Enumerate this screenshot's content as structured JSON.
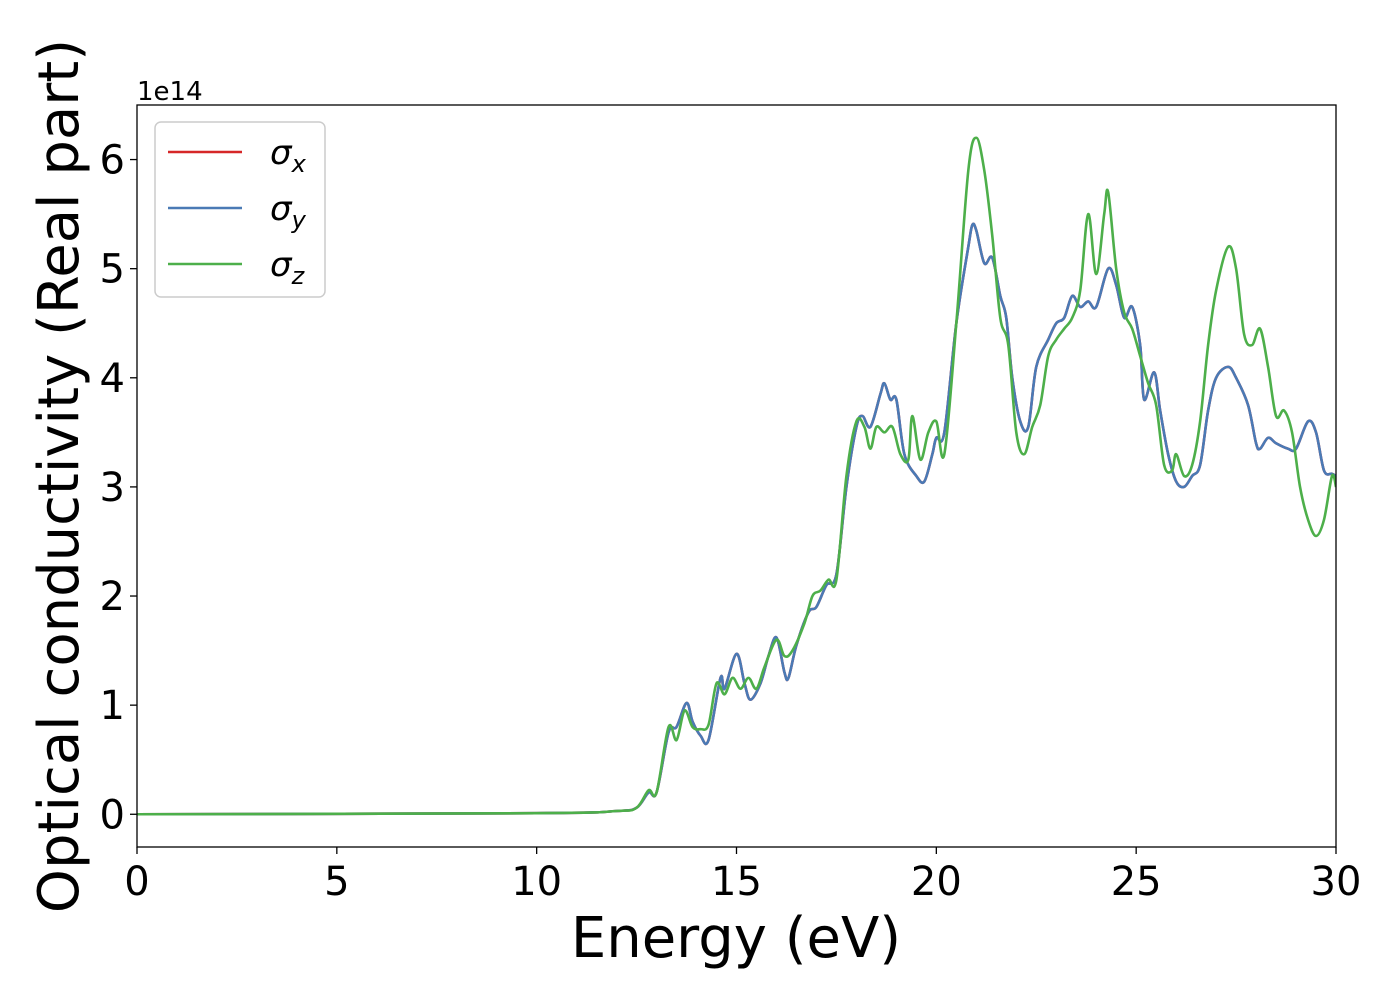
{
  "chart_data": {
    "type": "line",
    "xlabel": "Energy (eV)",
    "ylabel": "Optical conductivity (Real part)",
    "y_offset_label": "1e14",
    "y_scale_factor": 100000000000000.0,
    "xlim": [
      0,
      30
    ],
    "ylim": [
      -0.3,
      6.5
    ],
    "x_ticks": [
      0,
      5,
      10,
      15,
      20,
      25,
      30
    ],
    "x_tick_labels": [
      "0",
      "5",
      "10",
      "15",
      "20",
      "25",
      "30"
    ],
    "y_ticks": [
      0,
      1,
      2,
      3,
      4,
      5,
      6
    ],
    "y_tick_labels": [
      "0",
      "1",
      "2",
      "3",
      "4",
      "5",
      "6"
    ],
    "grid": false,
    "legend_position": "top-left",
    "series": [
      {
        "name": "σx",
        "legend_base": "σ",
        "legend_sub": "x",
        "color": "#d62728",
        "points": [
          [
            0,
            0
          ],
          [
            10,
            0.01
          ],
          [
            12,
            0.03
          ],
          [
            12.5,
            0.06
          ],
          [
            12.8,
            0.2
          ],
          [
            13.0,
            0.2
          ],
          [
            13.3,
            0.75
          ],
          [
            13.5,
            0.8
          ],
          [
            13.75,
            1.02
          ],
          [
            13.9,
            0.85
          ],
          [
            14.1,
            0.72
          ],
          [
            14.3,
            0.68
          ],
          [
            14.6,
            1.25
          ],
          [
            14.7,
            1.15
          ],
          [
            15.0,
            1.47
          ],
          [
            15.2,
            1.2
          ],
          [
            15.35,
            1.05
          ],
          [
            15.6,
            1.2
          ],
          [
            15.8,
            1.45
          ],
          [
            16.0,
            1.62
          ],
          [
            16.2,
            1.3
          ],
          [
            16.3,
            1.25
          ],
          [
            16.5,
            1.55
          ],
          [
            16.8,
            1.85
          ],
          [
            17.0,
            1.9
          ],
          [
            17.25,
            2.1
          ],
          [
            17.5,
            2.2
          ],
          [
            17.75,
            3.0
          ],
          [
            18.0,
            3.55
          ],
          [
            18.15,
            3.65
          ],
          [
            18.35,
            3.55
          ],
          [
            18.6,
            3.85
          ],
          [
            18.7,
            3.95
          ],
          [
            18.85,
            3.8
          ],
          [
            19.0,
            3.8
          ],
          [
            19.2,
            3.3
          ],
          [
            19.5,
            3.1
          ],
          [
            19.7,
            3.05
          ],
          [
            19.9,
            3.3
          ],
          [
            20.0,
            3.45
          ],
          [
            20.2,
            3.5
          ],
          [
            20.5,
            4.5
          ],
          [
            20.8,
            5.2
          ],
          [
            20.9,
            5.4
          ],
          [
            21.0,
            5.35
          ],
          [
            21.2,
            5.05
          ],
          [
            21.4,
            5.1
          ],
          [
            21.6,
            4.75
          ],
          [
            21.75,
            4.55
          ],
          [
            21.9,
            4.0
          ],
          [
            22.1,
            3.6
          ],
          [
            22.3,
            3.55
          ],
          [
            22.5,
            4.1
          ],
          [
            22.8,
            4.35
          ],
          [
            23.0,
            4.5
          ],
          [
            23.2,
            4.55
          ],
          [
            23.4,
            4.75
          ],
          [
            23.6,
            4.65
          ],
          [
            23.8,
            4.7
          ],
          [
            24.0,
            4.65
          ],
          [
            24.3,
            5.0
          ],
          [
            24.5,
            4.85
          ],
          [
            24.7,
            4.55
          ],
          [
            24.9,
            4.65
          ],
          [
            25.1,
            4.3
          ],
          [
            25.2,
            3.8
          ],
          [
            25.45,
            4.05
          ],
          [
            25.6,
            3.7
          ],
          [
            25.8,
            3.3
          ],
          [
            26.0,
            3.05
          ],
          [
            26.2,
            3.0
          ],
          [
            26.4,
            3.1
          ],
          [
            26.6,
            3.2
          ],
          [
            26.8,
            3.7
          ],
          [
            27.0,
            4.0
          ],
          [
            27.3,
            4.1
          ],
          [
            27.5,
            4.0
          ],
          [
            27.8,
            3.75
          ],
          [
            28.0,
            3.4
          ],
          [
            28.1,
            3.35
          ],
          [
            28.3,
            3.45
          ],
          [
            28.5,
            3.4
          ],
          [
            28.8,
            3.35
          ],
          [
            29.0,
            3.35
          ],
          [
            29.3,
            3.6
          ],
          [
            29.5,
            3.5
          ],
          [
            29.7,
            3.15
          ],
          [
            29.9,
            3.12
          ],
          [
            30.0,
            3.1
          ]
        ]
      },
      {
        "name": "σy",
        "legend_base": "σ",
        "legend_sub": "y",
        "color": "#4a7ab5",
        "points": [
          [
            0,
            0
          ],
          [
            10,
            0.01
          ],
          [
            12,
            0.03
          ],
          [
            12.5,
            0.06
          ],
          [
            12.8,
            0.2
          ],
          [
            13.0,
            0.2
          ],
          [
            13.3,
            0.75
          ],
          [
            13.5,
            0.8
          ],
          [
            13.75,
            1.02
          ],
          [
            13.9,
            0.85
          ],
          [
            14.1,
            0.72
          ],
          [
            14.3,
            0.68
          ],
          [
            14.6,
            1.25
          ],
          [
            14.7,
            1.15
          ],
          [
            15.0,
            1.47
          ],
          [
            15.2,
            1.2
          ],
          [
            15.35,
            1.05
          ],
          [
            15.6,
            1.2
          ],
          [
            15.8,
            1.45
          ],
          [
            16.0,
            1.62
          ],
          [
            16.2,
            1.3
          ],
          [
            16.3,
            1.25
          ],
          [
            16.5,
            1.55
          ],
          [
            16.8,
            1.85
          ],
          [
            17.0,
            1.9
          ],
          [
            17.25,
            2.1
          ],
          [
            17.5,
            2.2
          ],
          [
            17.75,
            3.0
          ],
          [
            18.0,
            3.55
          ],
          [
            18.15,
            3.65
          ],
          [
            18.35,
            3.55
          ],
          [
            18.6,
            3.85
          ],
          [
            18.7,
            3.95
          ],
          [
            18.85,
            3.8
          ],
          [
            19.0,
            3.8
          ],
          [
            19.2,
            3.3
          ],
          [
            19.5,
            3.1
          ],
          [
            19.7,
            3.05
          ],
          [
            19.9,
            3.3
          ],
          [
            20.0,
            3.45
          ],
          [
            20.2,
            3.5
          ],
          [
            20.5,
            4.5
          ],
          [
            20.8,
            5.2
          ],
          [
            20.9,
            5.4
          ],
          [
            21.0,
            5.35
          ],
          [
            21.2,
            5.05
          ],
          [
            21.4,
            5.1
          ],
          [
            21.6,
            4.75
          ],
          [
            21.75,
            4.55
          ],
          [
            21.9,
            4.0
          ],
          [
            22.1,
            3.6
          ],
          [
            22.3,
            3.55
          ],
          [
            22.5,
            4.1
          ],
          [
            22.8,
            4.35
          ],
          [
            23.0,
            4.5
          ],
          [
            23.2,
            4.55
          ],
          [
            23.4,
            4.75
          ],
          [
            23.6,
            4.65
          ],
          [
            23.8,
            4.7
          ],
          [
            24.0,
            4.65
          ],
          [
            24.3,
            5.0
          ],
          [
            24.5,
            4.85
          ],
          [
            24.7,
            4.55
          ],
          [
            24.9,
            4.65
          ],
          [
            25.1,
            4.3
          ],
          [
            25.2,
            3.8
          ],
          [
            25.45,
            4.05
          ],
          [
            25.6,
            3.7
          ],
          [
            25.8,
            3.3
          ],
          [
            26.0,
            3.05
          ],
          [
            26.2,
            3.0
          ],
          [
            26.4,
            3.1
          ],
          [
            26.6,
            3.2
          ],
          [
            26.8,
            3.7
          ],
          [
            27.0,
            4.0
          ],
          [
            27.3,
            4.1
          ],
          [
            27.5,
            4.0
          ],
          [
            27.8,
            3.75
          ],
          [
            28.0,
            3.4
          ],
          [
            28.1,
            3.35
          ],
          [
            28.3,
            3.45
          ],
          [
            28.5,
            3.4
          ],
          [
            28.8,
            3.35
          ],
          [
            29.0,
            3.35
          ],
          [
            29.3,
            3.6
          ],
          [
            29.5,
            3.5
          ],
          [
            29.7,
            3.15
          ],
          [
            29.9,
            3.12
          ],
          [
            30.0,
            3.1
          ]
        ]
      },
      {
        "name": "σz",
        "legend_base": "σ",
        "legend_sub": "z",
        "color": "#4daf4a",
        "points": [
          [
            0,
            0
          ],
          [
            10,
            0.01
          ],
          [
            12,
            0.03
          ],
          [
            12.5,
            0.06
          ],
          [
            12.8,
            0.22
          ],
          [
            13.0,
            0.2
          ],
          [
            13.3,
            0.8
          ],
          [
            13.5,
            0.68
          ],
          [
            13.7,
            0.95
          ],
          [
            13.9,
            0.8
          ],
          [
            14.1,
            0.78
          ],
          [
            14.3,
            0.82
          ],
          [
            14.5,
            1.2
          ],
          [
            14.7,
            1.1
          ],
          [
            14.9,
            1.25
          ],
          [
            15.1,
            1.15
          ],
          [
            15.3,
            1.25
          ],
          [
            15.5,
            1.15
          ],
          [
            15.7,
            1.35
          ],
          [
            16.0,
            1.6
          ],
          [
            16.2,
            1.45
          ],
          [
            16.4,
            1.5
          ],
          [
            16.7,
            1.75
          ],
          [
            16.9,
            2.0
          ],
          [
            17.1,
            2.05
          ],
          [
            17.3,
            2.15
          ],
          [
            17.5,
            2.15
          ],
          [
            17.75,
            3.1
          ],
          [
            18.0,
            3.6
          ],
          [
            18.2,
            3.55
          ],
          [
            18.35,
            3.35
          ],
          [
            18.5,
            3.55
          ],
          [
            18.7,
            3.5
          ],
          [
            18.9,
            3.55
          ],
          [
            19.1,
            3.3
          ],
          [
            19.3,
            3.25
          ],
          [
            19.4,
            3.65
          ],
          [
            19.6,
            3.25
          ],
          [
            19.8,
            3.5
          ],
          [
            20.0,
            3.6
          ],
          [
            20.2,
            3.3
          ],
          [
            20.5,
            4.5
          ],
          [
            20.8,
            5.9
          ],
          [
            21.0,
            6.2
          ],
          [
            21.2,
            5.9
          ],
          [
            21.4,
            5.3
          ],
          [
            21.6,
            4.55
          ],
          [
            21.8,
            4.3
          ],
          [
            22.0,
            3.5
          ],
          [
            22.2,
            3.3
          ],
          [
            22.4,
            3.55
          ],
          [
            22.6,
            3.75
          ],
          [
            22.8,
            4.2
          ],
          [
            23.0,
            4.35
          ],
          [
            23.2,
            4.45
          ],
          [
            23.4,
            4.55
          ],
          [
            23.6,
            4.8
          ],
          [
            23.8,
            5.5
          ],
          [
            24.0,
            4.95
          ],
          [
            24.2,
            5.5
          ],
          [
            24.3,
            5.7
          ],
          [
            24.5,
            5.0
          ],
          [
            24.7,
            4.6
          ],
          [
            24.9,
            4.45
          ],
          [
            25.1,
            4.2
          ],
          [
            25.3,
            3.95
          ],
          [
            25.5,
            3.75
          ],
          [
            25.7,
            3.2
          ],
          [
            25.9,
            3.15
          ],
          [
            26.0,
            3.3
          ],
          [
            26.2,
            3.1
          ],
          [
            26.4,
            3.2
          ],
          [
            26.6,
            3.6
          ],
          [
            26.8,
            4.3
          ],
          [
            27.0,
            4.8
          ],
          [
            27.3,
            5.2
          ],
          [
            27.5,
            5.0
          ],
          [
            27.7,
            4.4
          ],
          [
            27.9,
            4.3
          ],
          [
            28.1,
            4.45
          ],
          [
            28.3,
            4.1
          ],
          [
            28.5,
            3.65
          ],
          [
            28.7,
            3.7
          ],
          [
            28.9,
            3.5
          ],
          [
            29.1,
            3.0
          ],
          [
            29.3,
            2.7
          ],
          [
            29.5,
            2.55
          ],
          [
            29.7,
            2.7
          ],
          [
            29.9,
            3.1
          ],
          [
            30.0,
            3.0
          ]
        ]
      }
    ]
  }
}
